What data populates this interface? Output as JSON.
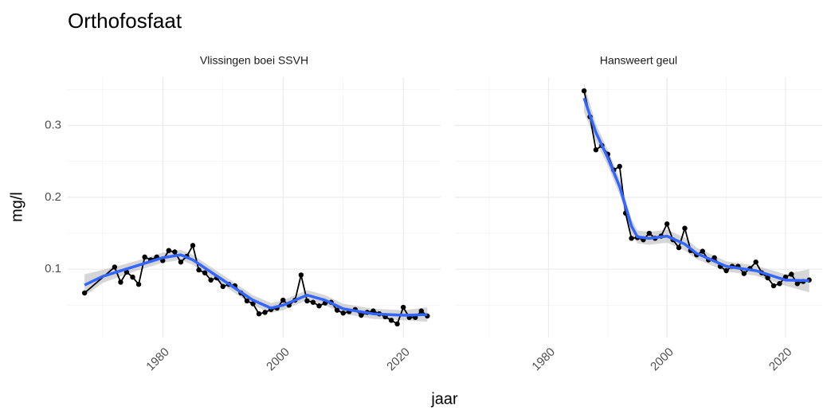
{
  "chart_data": {
    "type": "line",
    "title": "Orthofosfaat",
    "xlabel": "jaar",
    "ylabel": "mg/l",
    "xlim": [
      1964.2,
      2026.2
    ],
    "ylim": [
      0.005,
      0.367
    ],
    "xticks": [
      1980,
      2000,
      2020
    ],
    "yticks": [
      0.1,
      0.2,
      0.3
    ],
    "xminor_grid": [
      1970,
      1990,
      2010
    ],
    "yminor_grid": [
      0.05,
      0.15,
      0.25,
      0.35
    ],
    "grid": true,
    "color": "#000000",
    "smooth_color": "#3366FF",
    "ribbon_color": "#999999",
    "panels": [
      {
        "title": "Vlissingen boei SSVH",
        "x": [
          1967,
          1972,
          1973,
          1974,
          1975,
          1976,
          1977,
          1978,
          1979,
          1980,
          1981,
          1982,
          1983,
          1984,
          1985,
          1986,
          1987,
          1988,
          1989,
          1990,
          1991,
          1992,
          1993,
          1994,
          1995,
          1996,
          1997,
          1998,
          1999,
          2000,
          2001,
          2002,
          2003,
          2004,
          2005,
          2006,
          2007,
          2008,
          2009,
          2010,
          2011,
          2012,
          2013,
          2014,
          2015,
          2016,
          2017,
          2018,
          2019,
          2020,
          2021,
          2022,
          2023,
          2024
        ],
        "values": [
          0.067,
          0.103,
          0.082,
          0.096,
          0.089,
          0.079,
          0.117,
          0.113,
          0.117,
          0.112,
          0.126,
          0.124,
          0.11,
          0.118,
          0.133,
          0.099,
          0.095,
          0.085,
          0.088,
          0.076,
          0.079,
          0.077,
          0.067,
          0.056,
          0.052,
          0.038,
          0.04,
          0.044,
          0.046,
          0.057,
          0.05,
          0.057,
          0.092,
          0.056,
          0.054,
          0.049,
          0.053,
          0.054,
          0.043,
          0.039,
          0.041,
          0.044,
          0.036,
          0.04,
          0.042,
          0.038,
          0.034,
          0.029,
          0.024,
          0.047,
          0.033,
          0.033,
          0.042,
          0.035
        ],
        "smooth": {
          "x": [
            1967,
            1970,
            1975,
            1980,
            1983,
            1985,
            1990,
            1995,
            1998,
            2000,
            2004,
            2007,
            2010,
            2015,
            2020,
            2024
          ],
          "values": [
            0.078,
            0.09,
            0.103,
            0.116,
            0.12,
            0.113,
            0.085,
            0.057,
            0.046,
            0.05,
            0.064,
            0.057,
            0.045,
            0.038,
            0.036,
            0.037
          ],
          "lower": [
            0.063,
            0.081,
            0.096,
            0.109,
            0.113,
            0.106,
            0.078,
            0.05,
            0.039,
            0.043,
            0.057,
            0.05,
            0.038,
            0.031,
            0.029,
            0.027
          ],
          "upper": [
            0.093,
            0.099,
            0.11,
            0.123,
            0.127,
            0.12,
            0.092,
            0.064,
            0.053,
            0.057,
            0.071,
            0.064,
            0.052,
            0.045,
            0.043,
            0.047
          ]
        }
      },
      {
        "title": "Hansweert geul",
        "x": [
          1986,
          1987,
          1988,
          1989,
          1990,
          1991,
          1992,
          1993,
          1994,
          1995,
          1996,
          1997,
          1998,
          1999,
          2000,
          2001,
          2002,
          2003,
          2004,
          2005,
          2006,
          2007,
          2008,
          2009,
          2010,
          2011,
          2012,
          2013,
          2014,
          2015,
          2016,
          2017,
          2018,
          2019,
          2020,
          2021,
          2022,
          2023,
          2024
        ],
        "values": [
          0.348,
          0.312,
          0.266,
          0.272,
          0.26,
          0.238,
          0.243,
          0.178,
          0.143,
          0.144,
          0.141,
          0.15,
          0.143,
          0.146,
          0.163,
          0.141,
          0.13,
          0.157,
          0.126,
          0.12,
          0.125,
          0.113,
          0.116,
          0.104,
          0.098,
          0.104,
          0.104,
          0.094,
          0.101,
          0.11,
          0.095,
          0.088,
          0.077,
          0.08,
          0.089,
          0.093,
          0.08,
          0.083,
          0.085
        ],
        "smooth": {
          "x": [
            1986,
            1988,
            1990,
            1992,
            1994,
            1995,
            1997,
            2000,
            2003,
            2005,
            2010,
            2015,
            2020,
            2024
          ],
          "values": [
            0.338,
            0.29,
            0.255,
            0.215,
            0.16,
            0.145,
            0.143,
            0.146,
            0.135,
            0.122,
            0.104,
            0.098,
            0.085,
            0.084
          ],
          "lower": [
            0.318,
            0.278,
            0.244,
            0.204,
            0.15,
            0.136,
            0.134,
            0.137,
            0.126,
            0.114,
            0.097,
            0.091,
            0.077,
            0.068
          ],
          "upper": [
            0.358,
            0.302,
            0.266,
            0.226,
            0.17,
            0.154,
            0.152,
            0.155,
            0.144,
            0.13,
            0.111,
            0.105,
            0.093,
            0.1
          ]
        }
      }
    ]
  }
}
